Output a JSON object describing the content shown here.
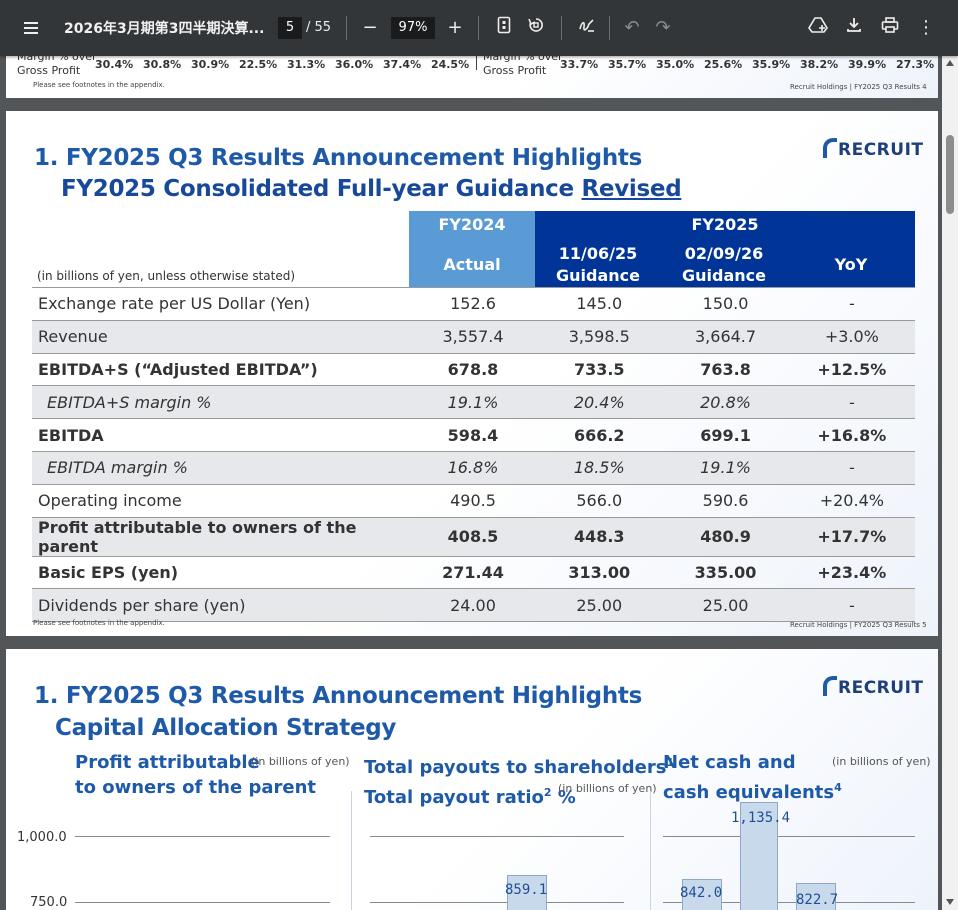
{
  "toolbar": {
    "title": "2026年3月期第3四半期決算...",
    "page_current": "5",
    "page_total": "/ 55",
    "zoom": "97%",
    "icons": [
      "menu-icon",
      "zoom-out-icon",
      "zoom-in-icon",
      "fit-page-icon",
      "rotate-icon",
      "annotate-icon",
      "undo-icon",
      "redo-icon",
      "drive-icon",
      "download-icon",
      "print-icon",
      "more-icon"
    ]
  },
  "page4": {
    "row_label_1": "Margin % over",
    "row_label_2": "Gross Profit",
    "left_values": "30.4% 30.8% 30.9% 22.5% 31.3% 36.0% 37.4% 24.5%",
    "right_label_1": "Margin % over",
    "right_label_2": "Gross Profit",
    "right_values": "33.7% 35.7% 35.0% 25.6% 35.9% 38.2% 39.9% 27.3%",
    "footnote": "Please see footnotes in the appendix.",
    "footer": "Recruit Holdings | FY2025 Q3 Results 4"
  },
  "page5": {
    "title_line1": "1. FY2025 Q3 Results Announcement Highlights",
    "title_line2_main": "FY2025 Consolidated Full-year Guidance ",
    "title_line2_revised": "Revised",
    "logo": "RECRUIT",
    "note": "(in billions of yen, unless otherwise stated)",
    "headers": {
      "fy2024": "FY2024",
      "actual": "Actual",
      "fy2025": "FY2025",
      "g1_l1": "11/06/25",
      "g1_l2": "Guidance",
      "g2_l1": "02/09/26",
      "g2_l2": "Guidance",
      "yoy": "YoY"
    },
    "rows": [
      {
        "label": "Exchange rate per US Dollar (Yen)",
        "actual": "152.6",
        "g1": "145.0",
        "g2": "150.0",
        "yoy": "-"
      },
      {
        "label": "Revenue",
        "actual": "3,557.4",
        "g1": "3,598.5",
        "g2": "3,664.7",
        "yoy": "+3.0%"
      },
      {
        "label": "EBITDA+S (“Adjusted EBITDA”)",
        "actual": "678.8",
        "g1": "733.5",
        "g2": "763.8",
        "yoy": "+12.5%"
      },
      {
        "label": "EBITDA+S margin %",
        "actual": "19.1%",
        "g1": "20.4%",
        "g2": "20.8%",
        "yoy": "-"
      },
      {
        "label": "EBITDA",
        "actual": "598.4",
        "g1": "666.2",
        "g2": "699.1",
        "yoy": "+16.8%"
      },
      {
        "label": "EBITDA margin %",
        "actual": "16.8%",
        "g1": "18.5%",
        "g2": "19.1%",
        "yoy": "-"
      },
      {
        "label": "Operating income",
        "actual": "490.5",
        "g1": "566.0",
        "g2": "590.6",
        "yoy": "+20.4%"
      },
      {
        "label": "Profit attributable to owners of the parent",
        "actual": "408.5",
        "g1": "448.3",
        "g2": "480.9",
        "yoy": "+17.7%"
      },
      {
        "label": "Basic EPS (yen)",
        "actual": "271.44",
        "g1": "313.00",
        "g2": "335.00",
        "yoy": "+23.4%"
      },
      {
        "label": "Dividends per share (yen)",
        "actual": "24.00",
        "g1": "25.00",
        "g2": "25.00",
        "yoy": "-"
      }
    ],
    "footnote": "Please see footnotes in the appendix.",
    "footer": "Recruit Holdings | FY2025 Q3 Results 5"
  },
  "page6": {
    "title_line1": "1. FY2025 Q3 Results Announcement Highlights",
    "title_line2": "Capital Allocation Strategy",
    "logo": "RECRUIT",
    "col1_title_l1": "Profit attributable",
    "col1_title_l2": "to owners of the parent",
    "col1_unit": "(in billions of yen)",
    "col2_title_l1": "Total payouts to shareholders",
    "col2_sup1": "1",
    "col2_title_l2": "Total payout ratio",
    "col2_sup2": "2",
    "col2_title_l2_end": " %",
    "col2_unit": "(in billions of yen)",
    "col3_title_l1": "Net cash and",
    "col3_title_l2": "cash equivalents",
    "col3_sup": "4",
    "col3_unit": "(in billions of yen)",
    "axis_labels": [
      "1,000.0",
      "750.0"
    ],
    "bar_values": {
      "payout": "859.1",
      "cash1": "842.0",
      "cash2": "1,135.4",
      "cash3": "822.7"
    }
  }
}
